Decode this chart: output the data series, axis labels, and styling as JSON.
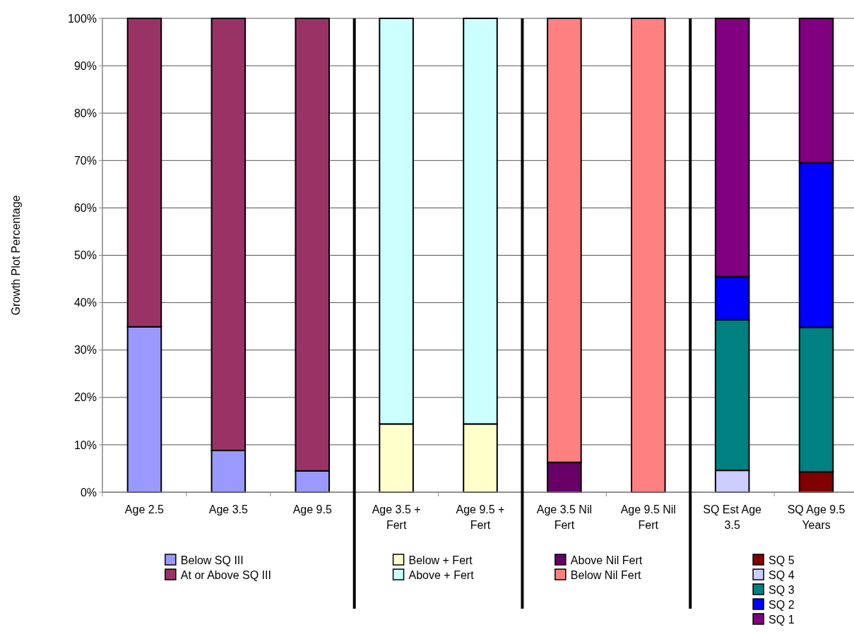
{
  "chart_data": {
    "type": "bar",
    "stacked": true,
    "ylabel": "Growth Plot Percentage",
    "categories": [
      "Age 2.5",
      "Age 3.5",
      "Age 9.5",
      "Age 3.5 + Fert",
      "Age 9.5 + Fert",
      "Age 3.5 Nil Fert",
      "Age 9.5 Nil Fert",
      "SQ Est Age 3.5",
      "SQ Age 9.5 Years"
    ],
    "series": [
      {
        "name": "Below SQ III",
        "color": "#9999ff",
        "values": [
          34.9,
          8.8,
          4.5,
          null,
          null,
          null,
          null,
          null,
          null
        ]
      },
      {
        "name": "At or Above SQ III",
        "color": "#993366",
        "values": [
          65.1,
          91.2,
          95.5,
          null,
          null,
          null,
          null,
          null,
          null
        ]
      },
      {
        "name": "Below + Fert",
        "color": "#ffffcc",
        "values": [
          null,
          null,
          null,
          14.4,
          14.4,
          null,
          null,
          null,
          null
        ]
      },
      {
        "name": "Above + Fert",
        "color": "#ccffff",
        "values": [
          null,
          null,
          null,
          85.6,
          85.6,
          null,
          null,
          null,
          null
        ]
      },
      {
        "name": "Above Nil Fert",
        "color": "#660066",
        "values": [
          null,
          null,
          null,
          null,
          null,
          6.3,
          0,
          null,
          null
        ]
      },
      {
        "name": "Below Nil Fert",
        "color": "#ff8080",
        "values": [
          null,
          null,
          null,
          null,
          null,
          93.7,
          100,
          null,
          null
        ]
      },
      {
        "name": "SQ 5",
        "color": "#800000",
        "values": [
          null,
          null,
          null,
          null,
          null,
          null,
          null,
          0,
          4.3
        ]
      },
      {
        "name": "SQ 4",
        "color": "#ccccff",
        "values": [
          null,
          null,
          null,
          null,
          null,
          null,
          null,
          4.6,
          0
        ]
      },
      {
        "name": "SQ 3",
        "color": "#008080",
        "values": [
          null,
          null,
          null,
          null,
          null,
          null,
          null,
          31.8,
          30.5
        ]
      },
      {
        "name": "SQ 2",
        "color": "#0000ff",
        "values": [
          null,
          null,
          null,
          null,
          null,
          null,
          null,
          9.1,
          34.7
        ]
      },
      {
        "name": "SQ 1",
        "color": "#800080",
        "values": [
          null,
          null,
          null,
          null,
          null,
          null,
          null,
          54.5,
          30.5
        ]
      }
    ],
    "ylim": [
      0,
      100
    ],
    "yticks": [
      {
        "value": 0,
        "label": "0%"
      },
      {
        "value": 10,
        "label": "10%"
      },
      {
        "value": 20,
        "label": "20%"
      },
      {
        "value": 30,
        "label": "30%"
      },
      {
        "value": 40,
        "label": "40%"
      },
      {
        "value": 50,
        "label": "50%"
      },
      {
        "value": 60,
        "label": "60%"
      },
      {
        "value": 70,
        "label": "70%"
      },
      {
        "value": 80,
        "label": "80%"
      },
      {
        "value": 90,
        "label": "90%"
      },
      {
        "value": 100,
        "label": "100%"
      }
    ],
    "grid": "y",
    "legend": "bottom"
  }
}
